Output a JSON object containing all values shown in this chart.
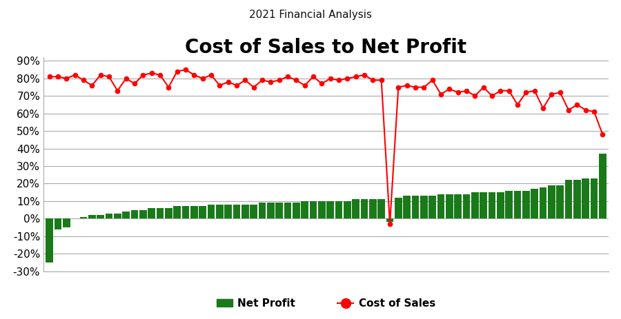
{
  "title_main": "Cost of Sales to Net Profit",
  "title_sub": "2021 Financial Analysis",
  "ylim": [
    -0.3,
    0.92
  ],
  "yticks": [
    -0.3,
    -0.2,
    -0.1,
    0.0,
    0.1,
    0.2,
    0.3,
    0.4,
    0.5,
    0.6,
    0.7,
    0.8,
    0.9
  ],
  "bg_color": "#ffffff",
  "grid_color": "#aaaaaa",
  "bar_color": "#1a7a1a",
  "line_color": "#ff0000",
  "marker_color": "#ff0000",
  "net_profit": [
    -0.25,
    -0.06,
    -0.05,
    0.0,
    0.01,
    0.02,
    0.02,
    0.03,
    0.03,
    0.04,
    0.05,
    0.05,
    0.06,
    0.06,
    0.06,
    0.07,
    0.07,
    0.07,
    0.07,
    0.08,
    0.08,
    0.08,
    0.08,
    0.08,
    0.08,
    0.09,
    0.09,
    0.09,
    0.09,
    0.09,
    0.1,
    0.1,
    0.1,
    0.1,
    0.1,
    0.1,
    0.11,
    0.11,
    0.11,
    0.11,
    -0.02,
    0.12,
    0.13,
    0.13,
    0.13,
    0.13,
    0.14,
    0.14,
    0.14,
    0.14,
    0.15,
    0.15,
    0.15,
    0.15,
    0.16,
    0.16,
    0.16,
    0.17,
    0.18,
    0.19,
    0.19,
    0.22,
    0.22,
    0.23,
    0.23,
    0.37
  ],
  "cost_of_sales": [
    0.81,
    0.81,
    0.8,
    0.82,
    0.79,
    0.76,
    0.82,
    0.81,
    0.73,
    0.8,
    0.77,
    0.82,
    0.83,
    0.82,
    0.75,
    0.84,
    0.85,
    0.82,
    0.8,
    0.82,
    0.76,
    0.78,
    0.76,
    0.79,
    0.75,
    0.79,
    0.78,
    0.79,
    0.81,
    0.79,
    0.76,
    0.81,
    0.77,
    0.8,
    0.79,
    0.8,
    0.81,
    0.82,
    0.79,
    0.79,
    -0.03,
    0.75,
    0.76,
    0.75,
    0.75,
    0.79,
    0.71,
    0.74,
    0.72,
    0.73,
    0.7,
    0.75,
    0.7,
    0.73,
    0.73,
    0.65,
    0.72,
    0.73,
    0.63,
    0.71,
    0.72,
    0.62,
    0.65,
    0.62,
    0.61,
    0.48
  ],
  "legend_bar_label": "Net Profit",
  "legend_line_label": "Cost of Sales",
  "title_fontsize": 20,
  "subtitle_fontsize": 11,
  "tick_fontsize": 11
}
